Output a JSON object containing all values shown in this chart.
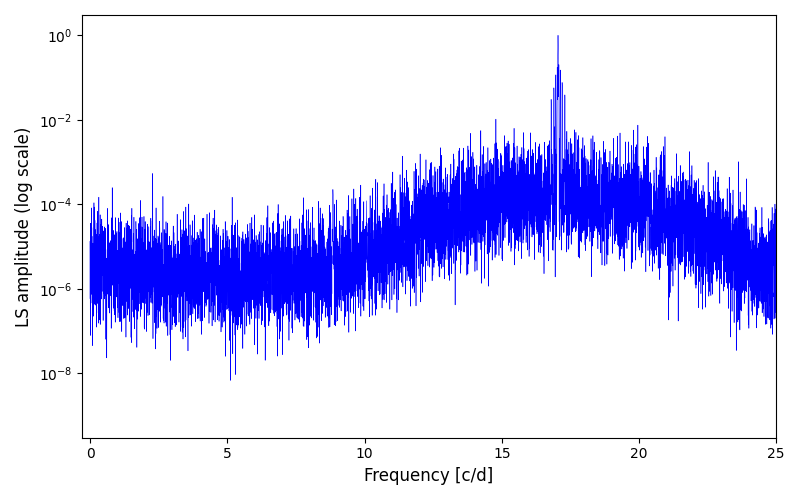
{
  "title": "",
  "xlabel": "Frequency [c/d]",
  "ylabel": "LS amplitude (log scale)",
  "xmin": -0.3,
  "xmax": 25,
  "ymin": 3e-10,
  "ymax": 3,
  "line_color": "blue",
  "background_color": "#ffffff",
  "xticks": [
    0,
    5,
    10,
    15,
    20,
    25
  ],
  "yticks_labels": [
    "10$^{-8}$",
    "10$^{-6}$",
    "10$^{-4}$",
    "10$^{-2}$",
    "10$^{0}$"
  ],
  "main_peak_freq": 17.05,
  "secondary_peak_freq": 8.85,
  "base_noise_level": 2e-06,
  "main_peak_amplitude": 1.0,
  "secondary_peak_amplitude": 0.0002,
  "seed": 123,
  "n_points": 8000
}
